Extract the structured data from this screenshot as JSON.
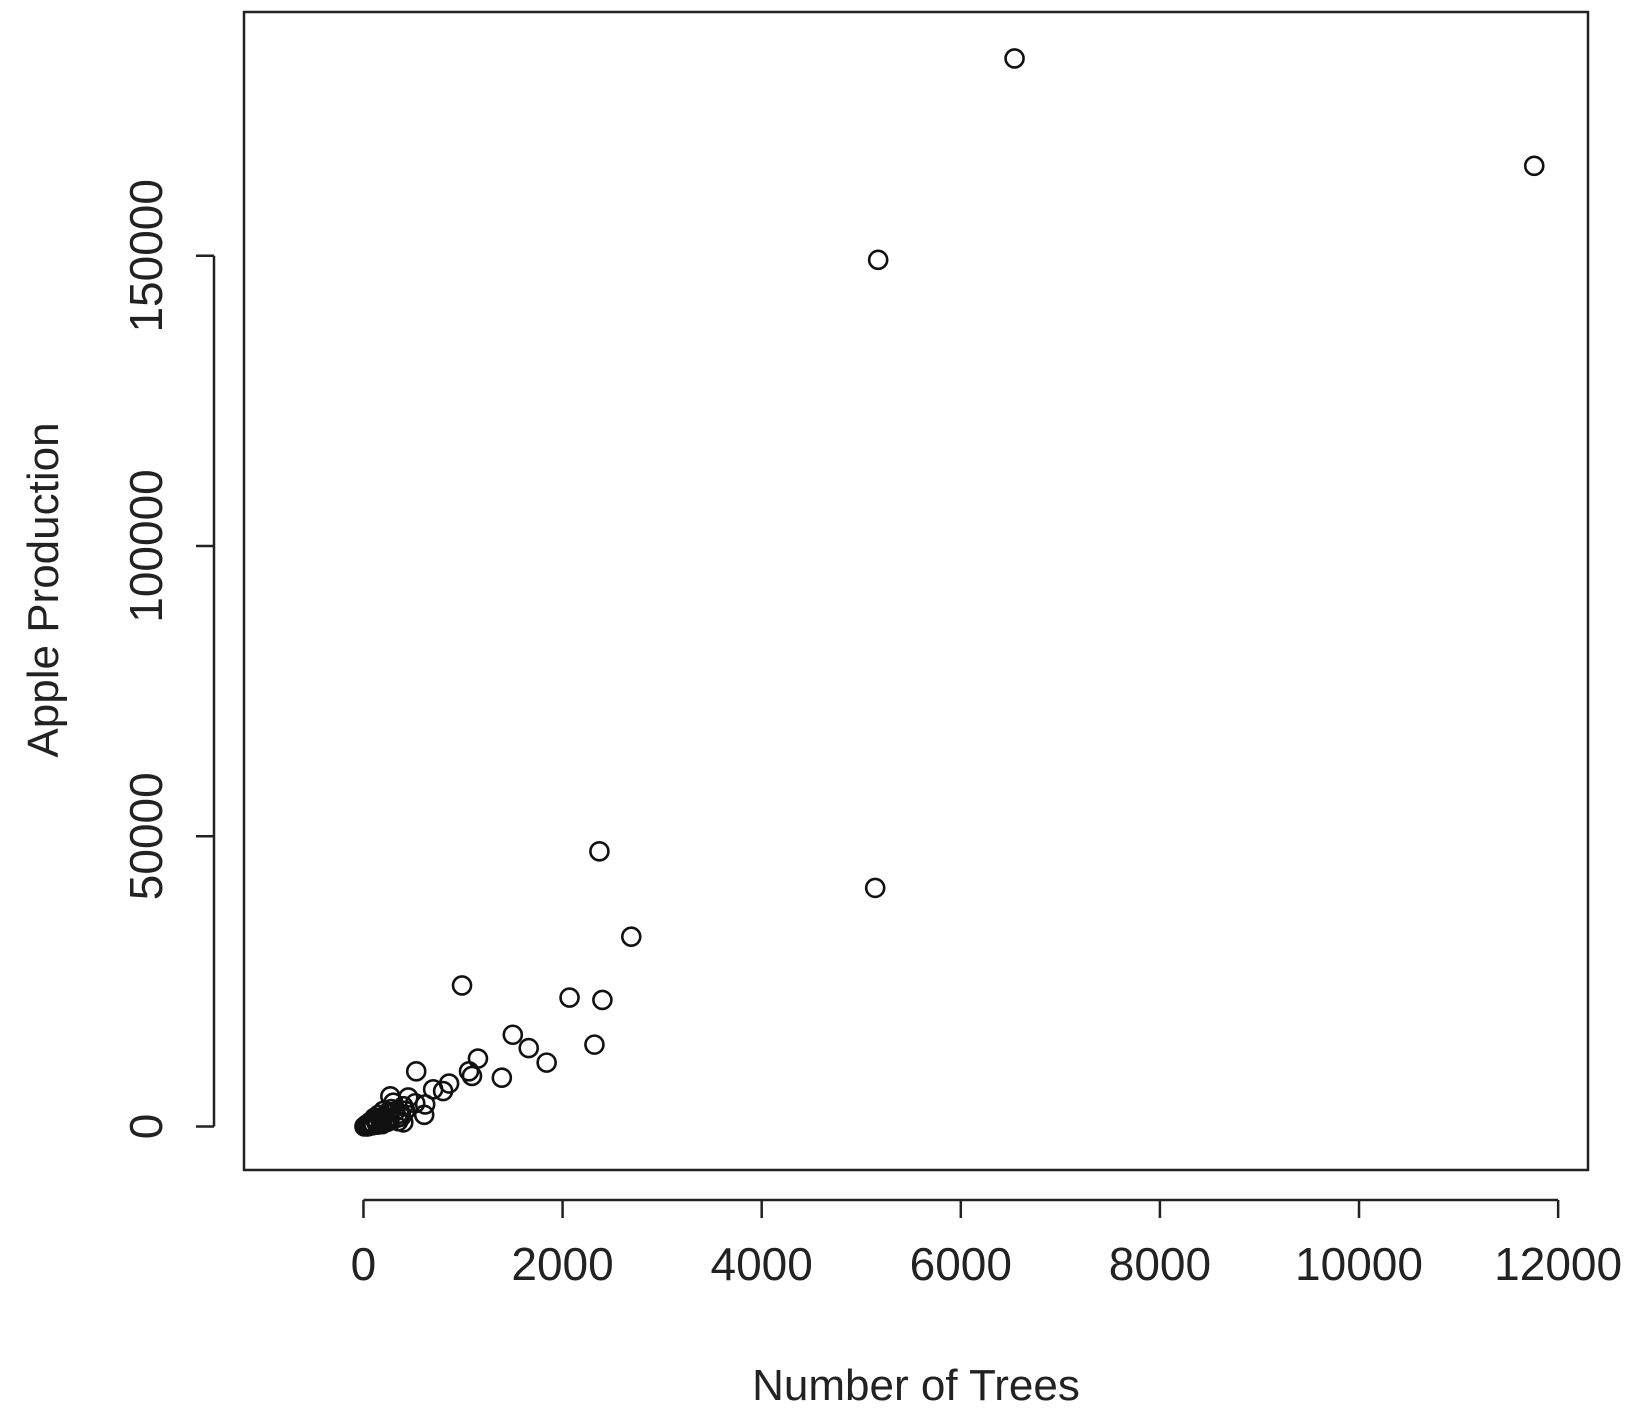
{
  "chart_data": {
    "type": "scatter",
    "title": "",
    "xlabel": "Number of Trees",
    "ylabel": "Apple Production",
    "xlim": [
      -1200,
      12300
    ],
    "ylim": [
      -7500,
      192000
    ],
    "xticks": [
      0,
      2000,
      4000,
      6000,
      8000,
      10000,
      12000
    ],
    "xtick_labels": [
      "0",
      "2000",
      "4000",
      "6000",
      "8000",
      "10000",
      "12000"
    ],
    "yticks": [
      0,
      50000,
      100000,
      150000
    ],
    "ytick_labels": [
      "0",
      "50000",
      "100000",
      "150000"
    ],
    "grid": false,
    "legend": "none",
    "marker": "open-circle",
    "colors": {
      "axis": "#222222",
      "marker_stroke": "#111111",
      "background": "#ffffff"
    },
    "series": [
      {
        "points": [
          [
            6540,
            184000
          ],
          [
            11760,
            165500
          ],
          [
            5170,
            149300
          ],
          [
            2370,
            47400
          ],
          [
            5140,
            41100
          ],
          [
            2690,
            32700
          ],
          [
            990,
            24300
          ],
          [
            2070,
            22200
          ],
          [
            2400,
            21800
          ],
          [
            1500,
            15800
          ],
          [
            1660,
            13500
          ],
          [
            1840,
            11000
          ],
          [
            2320,
            14100
          ],
          [
            1150,
            11700
          ],
          [
            1090,
            8700
          ],
          [
            1390,
            8400
          ],
          [
            1060,
            9500
          ],
          [
            860,
            7400
          ],
          [
            800,
            6100
          ],
          [
            700,
            6400
          ],
          [
            530,
            9500
          ],
          [
            620,
            3800
          ],
          [
            610,
            2000
          ],
          [
            520,
            4000
          ],
          [
            450,
            5000
          ],
          [
            400,
            3500
          ],
          [
            420,
            2700
          ],
          [
            400,
            700
          ],
          [
            360,
            2200
          ],
          [
            340,
            1500
          ],
          [
            300,
            4100
          ],
          [
            270,
            5200
          ],
          [
            250,
            2500
          ],
          [
            230,
            1200
          ],
          [
            200,
            2700
          ],
          [
            180,
            600
          ],
          [
            160,
            1500
          ],
          [
            140,
            300
          ],
          [
            120,
            1000
          ],
          [
            100,
            400
          ],
          [
            80,
            200
          ],
          [
            60,
            100
          ],
          [
            40,
            0
          ],
          [
            20,
            100
          ],
          [
            10,
            0
          ],
          [
            30,
            300
          ],
          [
            50,
            500
          ],
          [
            70,
            800
          ],
          [
            90,
            200
          ],
          [
            110,
            1500
          ],
          [
            130,
            700
          ],
          [
            150,
            2000
          ],
          [
            170,
            1100
          ],
          [
            190,
            400
          ],
          [
            210,
            1800
          ],
          [
            240,
            800
          ],
          [
            260,
            1300
          ],
          [
            280,
            3000
          ],
          [
            320,
            2600
          ],
          [
            350,
            900
          ],
          [
            380,
            1700
          ]
        ]
      }
    ]
  }
}
